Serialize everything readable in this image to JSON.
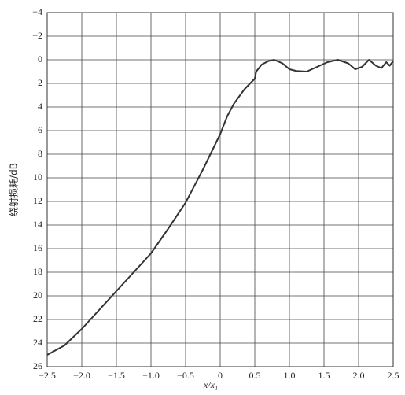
{
  "chart_data": {
    "type": "line",
    "x_label": "x/x₁",
    "y_label": "绕射损耗/dB",
    "x": [
      -2.5,
      -2.25,
      -2.0,
      -1.75,
      -1.5,
      -1.25,
      -1.0,
      -0.75,
      -0.5,
      -0.25,
      0,
      0.1,
      0.2,
      0.35,
      0.45,
      0.5,
      0.52,
      0.6,
      0.7,
      0.78,
      0.9,
      1.0,
      1.1,
      1.25,
      1.4,
      1.55,
      1.7,
      1.85,
      1.95,
      2.05,
      2.15,
      2.25,
      2.33,
      2.4,
      2.45,
      2.5
    ],
    "series": [
      {
        "color": "#333333",
        "values": [
          25,
          24.2,
          22.8,
          21.2,
          19.6,
          18.0,
          16.4,
          14.3,
          12.1,
          9.3,
          6.3,
          4.8,
          3.7,
          2.5,
          1.9,
          1.6,
          1.0,
          0.4,
          0.1,
          0,
          0.3,
          0.8,
          0.95,
          1.0,
          0.6,
          0.2,
          0,
          0.3,
          0.8,
          0.6,
          0,
          0.5,
          0.7,
          0.2,
          0.5,
          0.1
        ]
      }
    ],
    "xlim": [
      -2.5,
      2.5
    ],
    "xticks": [
      {
        "value": -2.5,
        "label": "−2.5"
      },
      {
        "value": -2,
        "label": "−2.0"
      },
      {
        "value": -1.5,
        "label": "−1.5"
      },
      {
        "value": -1,
        "label": "−1.0"
      },
      {
        "value": -0.5,
        "label": "−0.5"
      },
      0,
      0.5,
      {
        "value": 1,
        "label": "1.0"
      },
      1.5,
      {
        "value": 2,
        "label": "2.0"
      },
      2.5
    ],
    "ylim": [
      -4,
      26
    ],
    "y_inverted": true,
    "yticks": [
      {
        "value": -4,
        "label": "−4"
      },
      {
        "value": -2,
        "label": "−2"
      },
      0,
      2,
      4,
      6,
      8,
      10,
      12,
      14,
      16,
      18,
      20,
      22,
      24,
      26
    ],
    "grid": true
  }
}
